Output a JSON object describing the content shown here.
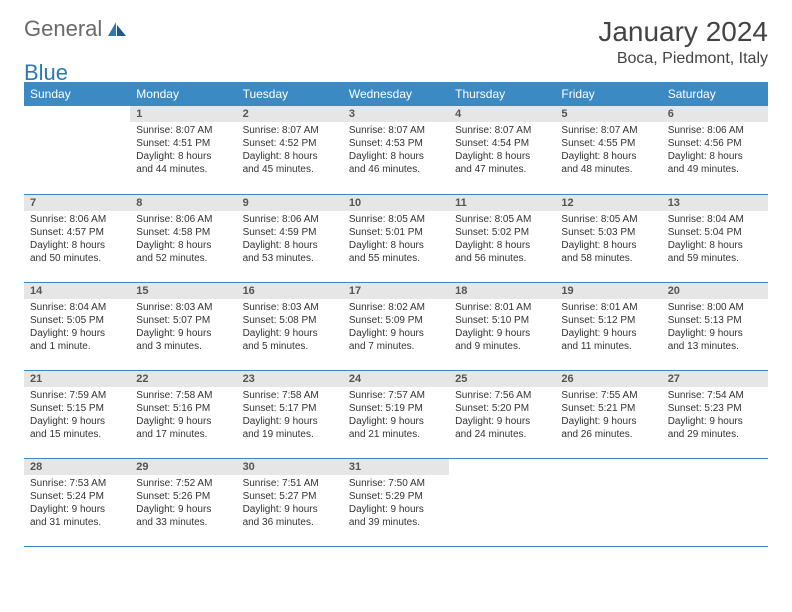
{
  "logo": {
    "text1": "General",
    "text2": "Blue"
  },
  "title": "January 2024",
  "location": "Boca, Piedmont, Italy",
  "colors": {
    "header_bg": "#3b8ac4",
    "header_text": "#ffffff",
    "daynum_bg": "#e6e6e6",
    "border": "#3b8ac4",
    "body_text": "#333333"
  },
  "weekdays": [
    "Sunday",
    "Monday",
    "Tuesday",
    "Wednesday",
    "Thursday",
    "Friday",
    "Saturday"
  ],
  "weeks": [
    [
      {
        "day": "",
        "sunrise": "",
        "sunset": "",
        "daylight1": "",
        "daylight2": ""
      },
      {
        "day": "1",
        "sunrise": "Sunrise: 8:07 AM",
        "sunset": "Sunset: 4:51 PM",
        "daylight1": "Daylight: 8 hours",
        "daylight2": "and 44 minutes."
      },
      {
        "day": "2",
        "sunrise": "Sunrise: 8:07 AM",
        "sunset": "Sunset: 4:52 PM",
        "daylight1": "Daylight: 8 hours",
        "daylight2": "and 45 minutes."
      },
      {
        "day": "3",
        "sunrise": "Sunrise: 8:07 AM",
        "sunset": "Sunset: 4:53 PM",
        "daylight1": "Daylight: 8 hours",
        "daylight2": "and 46 minutes."
      },
      {
        "day": "4",
        "sunrise": "Sunrise: 8:07 AM",
        "sunset": "Sunset: 4:54 PM",
        "daylight1": "Daylight: 8 hours",
        "daylight2": "and 47 minutes."
      },
      {
        "day": "5",
        "sunrise": "Sunrise: 8:07 AM",
        "sunset": "Sunset: 4:55 PM",
        "daylight1": "Daylight: 8 hours",
        "daylight2": "and 48 minutes."
      },
      {
        "day": "6",
        "sunrise": "Sunrise: 8:06 AM",
        "sunset": "Sunset: 4:56 PM",
        "daylight1": "Daylight: 8 hours",
        "daylight2": "and 49 minutes."
      }
    ],
    [
      {
        "day": "7",
        "sunrise": "Sunrise: 8:06 AM",
        "sunset": "Sunset: 4:57 PM",
        "daylight1": "Daylight: 8 hours",
        "daylight2": "and 50 minutes."
      },
      {
        "day": "8",
        "sunrise": "Sunrise: 8:06 AM",
        "sunset": "Sunset: 4:58 PM",
        "daylight1": "Daylight: 8 hours",
        "daylight2": "and 52 minutes."
      },
      {
        "day": "9",
        "sunrise": "Sunrise: 8:06 AM",
        "sunset": "Sunset: 4:59 PM",
        "daylight1": "Daylight: 8 hours",
        "daylight2": "and 53 minutes."
      },
      {
        "day": "10",
        "sunrise": "Sunrise: 8:05 AM",
        "sunset": "Sunset: 5:01 PM",
        "daylight1": "Daylight: 8 hours",
        "daylight2": "and 55 minutes."
      },
      {
        "day": "11",
        "sunrise": "Sunrise: 8:05 AM",
        "sunset": "Sunset: 5:02 PM",
        "daylight1": "Daylight: 8 hours",
        "daylight2": "and 56 minutes."
      },
      {
        "day": "12",
        "sunrise": "Sunrise: 8:05 AM",
        "sunset": "Sunset: 5:03 PM",
        "daylight1": "Daylight: 8 hours",
        "daylight2": "and 58 minutes."
      },
      {
        "day": "13",
        "sunrise": "Sunrise: 8:04 AM",
        "sunset": "Sunset: 5:04 PM",
        "daylight1": "Daylight: 8 hours",
        "daylight2": "and 59 minutes."
      }
    ],
    [
      {
        "day": "14",
        "sunrise": "Sunrise: 8:04 AM",
        "sunset": "Sunset: 5:05 PM",
        "daylight1": "Daylight: 9 hours",
        "daylight2": "and 1 minute."
      },
      {
        "day": "15",
        "sunrise": "Sunrise: 8:03 AM",
        "sunset": "Sunset: 5:07 PM",
        "daylight1": "Daylight: 9 hours",
        "daylight2": "and 3 minutes."
      },
      {
        "day": "16",
        "sunrise": "Sunrise: 8:03 AM",
        "sunset": "Sunset: 5:08 PM",
        "daylight1": "Daylight: 9 hours",
        "daylight2": "and 5 minutes."
      },
      {
        "day": "17",
        "sunrise": "Sunrise: 8:02 AM",
        "sunset": "Sunset: 5:09 PM",
        "daylight1": "Daylight: 9 hours",
        "daylight2": "and 7 minutes."
      },
      {
        "day": "18",
        "sunrise": "Sunrise: 8:01 AM",
        "sunset": "Sunset: 5:10 PM",
        "daylight1": "Daylight: 9 hours",
        "daylight2": "and 9 minutes."
      },
      {
        "day": "19",
        "sunrise": "Sunrise: 8:01 AM",
        "sunset": "Sunset: 5:12 PM",
        "daylight1": "Daylight: 9 hours",
        "daylight2": "and 11 minutes."
      },
      {
        "day": "20",
        "sunrise": "Sunrise: 8:00 AM",
        "sunset": "Sunset: 5:13 PM",
        "daylight1": "Daylight: 9 hours",
        "daylight2": "and 13 minutes."
      }
    ],
    [
      {
        "day": "21",
        "sunrise": "Sunrise: 7:59 AM",
        "sunset": "Sunset: 5:15 PM",
        "daylight1": "Daylight: 9 hours",
        "daylight2": "and 15 minutes."
      },
      {
        "day": "22",
        "sunrise": "Sunrise: 7:58 AM",
        "sunset": "Sunset: 5:16 PM",
        "daylight1": "Daylight: 9 hours",
        "daylight2": "and 17 minutes."
      },
      {
        "day": "23",
        "sunrise": "Sunrise: 7:58 AM",
        "sunset": "Sunset: 5:17 PM",
        "daylight1": "Daylight: 9 hours",
        "daylight2": "and 19 minutes."
      },
      {
        "day": "24",
        "sunrise": "Sunrise: 7:57 AM",
        "sunset": "Sunset: 5:19 PM",
        "daylight1": "Daylight: 9 hours",
        "daylight2": "and 21 minutes."
      },
      {
        "day": "25",
        "sunrise": "Sunrise: 7:56 AM",
        "sunset": "Sunset: 5:20 PM",
        "daylight1": "Daylight: 9 hours",
        "daylight2": "and 24 minutes."
      },
      {
        "day": "26",
        "sunrise": "Sunrise: 7:55 AM",
        "sunset": "Sunset: 5:21 PM",
        "daylight1": "Daylight: 9 hours",
        "daylight2": "and 26 minutes."
      },
      {
        "day": "27",
        "sunrise": "Sunrise: 7:54 AM",
        "sunset": "Sunset: 5:23 PM",
        "daylight1": "Daylight: 9 hours",
        "daylight2": "and 29 minutes."
      }
    ],
    [
      {
        "day": "28",
        "sunrise": "Sunrise: 7:53 AM",
        "sunset": "Sunset: 5:24 PM",
        "daylight1": "Daylight: 9 hours",
        "daylight2": "and 31 minutes."
      },
      {
        "day": "29",
        "sunrise": "Sunrise: 7:52 AM",
        "sunset": "Sunset: 5:26 PM",
        "daylight1": "Daylight: 9 hours",
        "daylight2": "and 33 minutes."
      },
      {
        "day": "30",
        "sunrise": "Sunrise: 7:51 AM",
        "sunset": "Sunset: 5:27 PM",
        "daylight1": "Daylight: 9 hours",
        "daylight2": "and 36 minutes."
      },
      {
        "day": "31",
        "sunrise": "Sunrise: 7:50 AM",
        "sunset": "Sunset: 5:29 PM",
        "daylight1": "Daylight: 9 hours",
        "daylight2": "and 39 minutes."
      },
      {
        "day": "",
        "sunrise": "",
        "sunset": "",
        "daylight1": "",
        "daylight2": ""
      },
      {
        "day": "",
        "sunrise": "",
        "sunset": "",
        "daylight1": "",
        "daylight2": ""
      },
      {
        "day": "",
        "sunrise": "",
        "sunset": "",
        "daylight1": "",
        "daylight2": ""
      }
    ]
  ]
}
